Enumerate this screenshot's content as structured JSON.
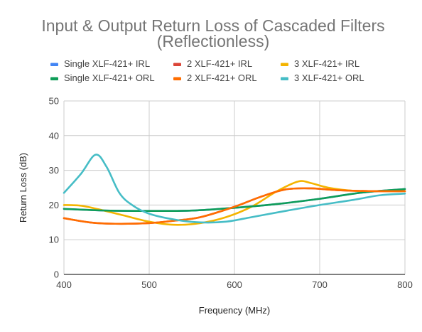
{
  "chart_data": {
    "type": "line",
    "title": [
      "Input & Output Return Loss of Cascaded Filters",
      "(Reflectionless)"
    ],
    "xlabel": "Frequency (MHz)",
    "ylabel": "Return Loss (dB)",
    "xlim": [
      400,
      800
    ],
    "ylim": [
      0,
      50
    ],
    "x_ticks": [
      400,
      500,
      600,
      700,
      800
    ],
    "y_ticks": [
      0,
      10,
      20,
      30,
      40,
      50
    ],
    "grid": true,
    "legend_position": "top",
    "series": [
      {
        "name": "Single XLF-421+ IRL",
        "color": "#4285f4",
        "points": [
          [
            400,
            18.9
          ],
          [
            450,
            18.4
          ],
          [
            500,
            18.3
          ],
          [
            550,
            18.4
          ],
          [
            600,
            19.2
          ],
          [
            650,
            20.3
          ],
          [
            700,
            21.8
          ],
          [
            750,
            23.6
          ],
          [
            800,
            24.6
          ]
        ]
      },
      {
        "name": "2 XLF-421+ IRL",
        "color": "#db4437",
        "points": [
          [
            400,
            16.2
          ],
          [
            430,
            15.0
          ],
          [
            460,
            14.6
          ],
          [
            500,
            14.8
          ],
          [
            530,
            15.5
          ],
          [
            560,
            16.5
          ],
          [
            600,
            19.5
          ],
          [
            630,
            22.3
          ],
          [
            660,
            24.5
          ],
          [
            690,
            24.8
          ],
          [
            720,
            24.3
          ],
          [
            760,
            24.0
          ],
          [
            800,
            24.0
          ]
        ]
      },
      {
        "name": "3 XLF-421+ IRL",
        "color": "#f4b400",
        "points": [
          [
            400,
            20.0
          ],
          [
            420,
            19.8
          ],
          [
            440,
            18.8
          ],
          [
            470,
            17.0
          ],
          [
            500,
            15.2
          ],
          [
            530,
            14.3
          ],
          [
            560,
            14.8
          ],
          [
            590,
            16.5
          ],
          [
            620,
            19.5
          ],
          [
            650,
            24.0
          ],
          [
            675,
            26.8
          ],
          [
            690,
            26.3
          ],
          [
            710,
            25.0
          ],
          [
            740,
            24.1
          ],
          [
            770,
            24.0
          ],
          [
            800,
            24.0
          ]
        ]
      },
      {
        "name": "Single XLF-421+ ORL",
        "color": "#0f9d58",
        "points": [
          [
            400,
            18.9
          ],
          [
            450,
            18.4
          ],
          [
            500,
            18.3
          ],
          [
            550,
            18.4
          ],
          [
            600,
            19.2
          ],
          [
            650,
            20.3
          ],
          [
            700,
            21.8
          ],
          [
            750,
            23.6
          ],
          [
            800,
            24.6
          ]
        ]
      },
      {
        "name": "2 XLF-421+ ORL",
        "color": "#ff6d00",
        "points": [
          [
            400,
            16.2
          ],
          [
            430,
            15.0
          ],
          [
            460,
            14.6
          ],
          [
            500,
            14.8
          ],
          [
            530,
            15.5
          ],
          [
            560,
            16.5
          ],
          [
            600,
            19.5
          ],
          [
            630,
            22.3
          ],
          [
            660,
            24.5
          ],
          [
            690,
            24.8
          ],
          [
            720,
            24.3
          ],
          [
            760,
            24.0
          ],
          [
            800,
            24.0
          ]
        ]
      },
      {
        "name": "3 XLF-421+ ORL",
        "color": "#46bdc6",
        "points": [
          [
            400,
            23.5
          ],
          [
            420,
            29.0
          ],
          [
            437,
            34.5
          ],
          [
            450,
            31.0
          ],
          [
            465,
            23.5
          ],
          [
            480,
            20.0
          ],
          [
            500,
            17.5
          ],
          [
            530,
            15.8
          ],
          [
            560,
            15.0
          ],
          [
            590,
            15.2
          ],
          [
            620,
            16.5
          ],
          [
            660,
            18.3
          ],
          [
            700,
            20.0
          ],
          [
            740,
            21.5
          ],
          [
            770,
            22.8
          ],
          [
            800,
            23.3
          ]
        ]
      }
    ]
  }
}
